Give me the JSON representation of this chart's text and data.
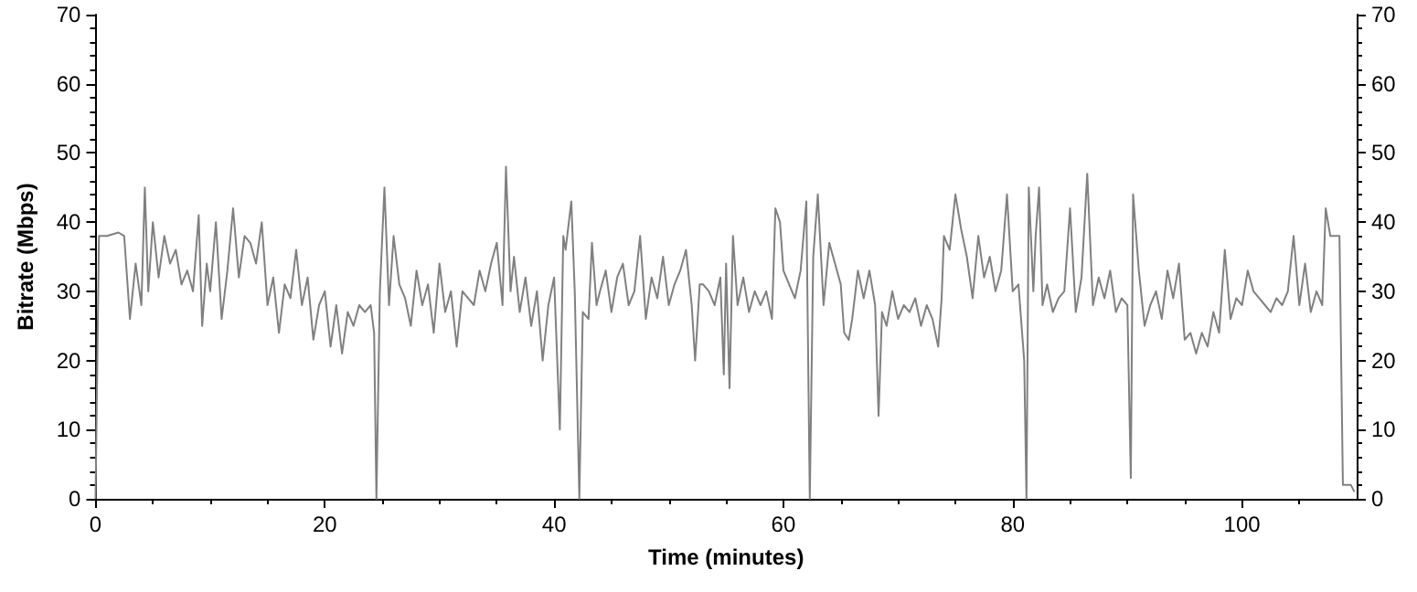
{
  "chart_data": {
    "type": "line",
    "xlabel": "Time (minutes)",
    "ylabel": "Bitrate (Mbps)",
    "xlim": [
      0,
      110
    ],
    "xticks": [
      0,
      20,
      40,
      60,
      80,
      100
    ],
    "ylim": [
      0,
      70
    ],
    "yticks": [
      0,
      10,
      20,
      30,
      40,
      50,
      60,
      70
    ],
    "y2lim": [
      0,
      70
    ],
    "y2ticks": [
      0,
      10,
      20,
      30,
      40,
      50,
      60,
      70
    ],
    "grid": false,
    "marker": "none",
    "line_style": "solid",
    "series": [
      {
        "color": "#808080",
        "x": [
          0,
          0.3,
          1,
          2,
          2.5,
          3,
          3.5,
          4,
          4.3,
          4.6,
          5,
          5.5,
          6,
          6.5,
          7,
          7.5,
          8,
          8.5,
          9,
          9.3,
          9.7,
          10,
          10.5,
          11,
          11.5,
          12,
          12.5,
          13,
          13.5,
          14,
          14.5,
          15,
          15.5,
          16,
          16.5,
          17,
          17.5,
          18,
          18.5,
          19,
          19.5,
          20,
          20.5,
          21,
          21.5,
          22,
          22.5,
          23,
          23.5,
          24,
          24.3,
          24.5,
          24.8,
          25.2,
          25.6,
          26,
          26.5,
          27,
          27.5,
          28,
          28.5,
          29,
          29.5,
          30,
          30.5,
          31,
          31.5,
          32,
          33,
          33.5,
          34,
          34.5,
          35,
          35.5,
          35.8,
          36.2,
          36.5,
          37,
          37.5,
          38,
          38.5,
          39,
          39.5,
          40,
          40.5,
          40.8,
          41,
          41.5,
          41.8,
          42.2,
          42.5,
          43,
          43.3,
          43.7,
          44,
          44.5,
          45,
          45.5,
          46,
          46.5,
          47,
          47.5,
          48,
          48.5,
          49,
          49.5,
          50,
          50.5,
          51,
          51.5,
          52,
          52.3,
          52.7,
          53,
          53.5,
          54,
          54.5,
          54.8,
          55,
          55.3,
          55.6,
          56,
          56.5,
          57,
          57.5,
          58,
          58.5,
          59,
          59.3,
          59.7,
          60,
          60.5,
          61,
          61.5,
          62,
          62.3,
          62.6,
          63,
          63.5,
          64,
          64.5,
          65,
          65.3,
          65.7,
          66,
          66.5,
          67,
          67.5,
          68,
          68.3,
          68.6,
          69,
          69.5,
          70,
          70.5,
          71,
          71.5,
          72,
          72.5,
          73,
          73.5,
          73.8,
          74,
          74.5,
          75,
          75.5,
          76,
          76.5,
          77,
          77.5,
          78,
          78.5,
          79,
          79.5,
          80,
          80.5,
          81,
          81.2,
          81.4,
          81.8,
          82,
          82.3,
          82.6,
          83,
          83.5,
          84,
          84.5,
          85,
          85.5,
          86,
          86.5,
          87,
          87.5,
          88,
          88.5,
          89,
          89.5,
          90,
          90.3,
          90.5,
          91,
          91.5,
          92,
          92.5,
          93,
          93.5,
          94,
          94.5,
          95,
          95.5,
          96,
          96.5,
          97,
          97.5,
          98,
          98.5,
          99,
          99.5,
          100,
          100.5,
          101,
          101.5,
          102,
          102.5,
          103,
          103.5,
          104,
          104.5,
          105,
          105.5,
          106,
          106.5,
          107,
          107.3,
          107.7,
          108.5,
          108.8,
          109.5,
          109.8
        ],
        "values": [
          0,
          38,
          38,
          38.5,
          38,
          26,
          34,
          28,
          45,
          30,
          40,
          32,
          38,
          34,
          36,
          31,
          33,
          30,
          41,
          25,
          34,
          30,
          40,
          26,
          33,
          42,
          32,
          38,
          37,
          34,
          40,
          28,
          32,
          24,
          31,
          29,
          36,
          28,
          32,
          23,
          28,
          30,
          22,
          28,
          21,
          27,
          25,
          28,
          27,
          28,
          24,
          0,
          30,
          45,
          28,
          38,
          31,
          29,
          25,
          33,
          28,
          31,
          24,
          34,
          27,
          30,
          22,
          30,
          28,
          33,
          30,
          34,
          37,
          28,
          48,
          30,
          35,
          27,
          32,
          25,
          30,
          20,
          28,
          32,
          10,
          38,
          36,
          43,
          30,
          0,
          27,
          26,
          37,
          28,
          30,
          33,
          27,
          32,
          34,
          28,
          30,
          38,
          26,
          32,
          29,
          35,
          28,
          31,
          33,
          36,
          28,
          20,
          31,
          31,
          30,
          28,
          32,
          18,
          34,
          16,
          38,
          28,
          32,
          27,
          30,
          28,
          30,
          26,
          42,
          40,
          33,
          31,
          29,
          33,
          43,
          0,
          35,
          44,
          28,
          37,
          34,
          31,
          24,
          23,
          26,
          33,
          29,
          33,
          28,
          12,
          27,
          25,
          30,
          26,
          28,
          27,
          29,
          25,
          28,
          26,
          22,
          29,
          38,
          36,
          44,
          39,
          35,
          29,
          38,
          32,
          35,
          30,
          33,
          44,
          30,
          31,
          20,
          0,
          45,
          30,
          38,
          45,
          28,
          31,
          27,
          29,
          30,
          42,
          27,
          32,
          47,
          28,
          32,
          29,
          33,
          27,
          29,
          28,
          3,
          44,
          33,
          25,
          28,
          30,
          26,
          33,
          29,
          34,
          23,
          24,
          21,
          24,
          22,
          27,
          24,
          36,
          26,
          29,
          28,
          33,
          30,
          29,
          28,
          27,
          29,
          28,
          30,
          38,
          28,
          34,
          27,
          30,
          28,
          42,
          38,
          38,
          2,
          2,
          1
        ]
      }
    ]
  }
}
